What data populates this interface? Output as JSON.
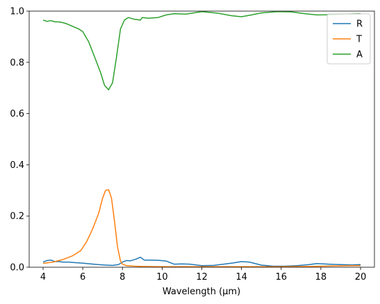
{
  "chart_data": {
    "type": "line",
    "title": "",
    "xlabel": "Wavelength (μm)",
    "ylabel": "",
    "xlim": [
      3.3,
      20.7
    ],
    "ylim": [
      0,
      1
    ],
    "xticks": [
      4,
      6,
      8,
      10,
      12,
      14,
      16,
      18,
      20
    ],
    "yticks": [
      0.0,
      0.2,
      0.4,
      0.6,
      0.8,
      1.0
    ],
    "xtick_labels": [
      "4",
      "6",
      "8",
      "10",
      "12",
      "14",
      "16",
      "18",
      "20"
    ],
    "ytick_labels": [
      "0.0",
      "0.2",
      "0.4",
      "0.6",
      "0.8",
      "1.0"
    ],
    "grid": false,
    "legend_position": "top-right",
    "series": [
      {
        "name": "R",
        "color": "#1f77b4",
        "x": [
          4.0,
          4.2,
          4.4,
          4.6,
          4.8,
          5.0,
          5.3,
          5.6,
          6.0,
          6.4,
          6.8,
          7.2,
          7.5,
          7.8,
          8.0,
          8.2,
          8.4,
          8.7,
          8.9,
          9.1,
          9.4,
          9.8,
          10.2,
          10.6,
          11.0,
          11.4,
          12.0,
          12.6,
          13.2,
          13.6,
          14.0,
          14.4,
          15.0,
          15.6,
          16.2,
          16.8,
          17.4,
          17.8,
          18.4,
          19.0,
          19.6,
          20.0
        ],
        "y": [
          0.02,
          0.026,
          0.028,
          0.022,
          0.022,
          0.02,
          0.02,
          0.018,
          0.016,
          0.013,
          0.01,
          0.008,
          0.007,
          0.01,
          0.02,
          0.026,
          0.025,
          0.032,
          0.039,
          0.028,
          0.028,
          0.027,
          0.024,
          0.012,
          0.013,
          0.012,
          0.006,
          0.007,
          0.013,
          0.017,
          0.022,
          0.02,
          0.008,
          0.004,
          0.004,
          0.006,
          0.01,
          0.014,
          0.012,
          0.01,
          0.009,
          0.01
        ]
      },
      {
        "name": "T",
        "color": "#ff7f0e",
        "x": [
          4.0,
          4.5,
          5.0,
          5.5,
          5.9,
          6.2,
          6.5,
          6.8,
          7.0,
          7.15,
          7.3,
          7.45,
          7.6,
          7.75,
          7.9,
          8.0,
          8.2,
          8.6,
          9.0,
          10.0,
          12.0,
          14.0,
          16.0,
          17.5,
          18.5,
          19.5,
          20.0
        ],
        "y": [
          0.015,
          0.02,
          0.03,
          0.045,
          0.065,
          0.1,
          0.15,
          0.21,
          0.27,
          0.3,
          0.303,
          0.27,
          0.18,
          0.08,
          0.025,
          0.012,
          0.006,
          0.004,
          0.003,
          0.002,
          0.002,
          0.002,
          0.002,
          0.003,
          0.005,
          0.006,
          0.006
        ]
      },
      {
        "name": "A",
        "color": "#2ca02c",
        "x": [
          4.0,
          4.2,
          4.4,
          4.6,
          4.8,
          5.0,
          5.2,
          5.5,
          5.8,
          6.0,
          6.3,
          6.6,
          6.9,
          7.1,
          7.3,
          7.5,
          7.7,
          7.9,
          8.1,
          8.3,
          8.6,
          8.9,
          9.0,
          9.3,
          9.8,
          10.2,
          10.6,
          11.2,
          12.0,
          12.8,
          13.5,
          14.0,
          14.5,
          15.0,
          15.8,
          16.5,
          17.2,
          17.8,
          18.4,
          19.2,
          20.0
        ],
        "y": [
          0.965,
          0.96,
          0.963,
          0.958,
          0.958,
          0.955,
          0.95,
          0.94,
          0.93,
          0.92,
          0.88,
          0.82,
          0.76,
          0.71,
          0.693,
          0.72,
          0.82,
          0.93,
          0.965,
          0.975,
          0.968,
          0.965,
          0.975,
          0.972,
          0.975,
          0.985,
          0.99,
          0.988,
          0.998,
          0.992,
          0.982,
          0.978,
          0.985,
          0.993,
          0.998,
          0.997,
          0.99,
          0.985,
          0.986,
          0.988,
          0.99
        ]
      }
    ]
  }
}
